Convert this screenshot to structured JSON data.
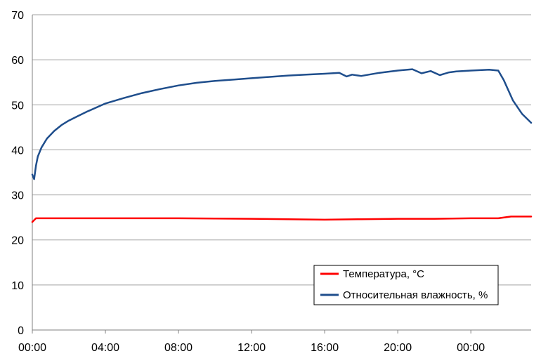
{
  "chart_data": {
    "type": "line",
    "title": "",
    "xlabel": "",
    "ylabel": "",
    "ylim": [
      0,
      70
    ],
    "yticks": [
      0,
      10,
      20,
      30,
      40,
      50,
      60,
      70
    ],
    "xticks": [
      "00:00",
      "04:00",
      "08:00",
      "12:00",
      "16:00",
      "20:00",
      "00:00"
    ],
    "xlim_hours": [
      0,
      27.3
    ],
    "grid": "horizontal",
    "legend_position": "bottom-right",
    "series": [
      {
        "name": "Температура, °C",
        "color": "#ff0000",
        "x_hours": [
          0,
          0.2,
          4,
          8,
          12,
          14,
          16,
          18,
          20,
          22,
          24,
          25.5,
          26.2,
          27.3
        ],
        "values": [
          24.0,
          24.8,
          24.8,
          24.8,
          24.7,
          24.6,
          24.5,
          24.6,
          24.7,
          24.7,
          24.8,
          24.8,
          25.2,
          25.2
        ]
      },
      {
        "name": "Относительная влажность, %",
        "color": "#1f4e8c",
        "x_hours": [
          0,
          0.1,
          0.2,
          0.3,
          0.5,
          0.8,
          1.2,
          1.6,
          2,
          2.5,
          3,
          4,
          5,
          6,
          7,
          8,
          9,
          10,
          11,
          12,
          13,
          14,
          15,
          16,
          16.8,
          17.2,
          17.5,
          18,
          19,
          20,
          20.8,
          21.3,
          21.8,
          22.3,
          22.8,
          23.2,
          24,
          25,
          25.5,
          25.8,
          26.3,
          26.8,
          27.3
        ],
        "values": [
          34.5,
          33.5,
          36.5,
          38.5,
          40.5,
          42.5,
          44.2,
          45.5,
          46.5,
          47.5,
          48.5,
          50.3,
          51.5,
          52.6,
          53.5,
          54.3,
          54.9,
          55.3,
          55.6,
          55.9,
          56.2,
          56.5,
          56.7,
          56.9,
          57.1,
          56.3,
          56.7,
          56.4,
          57.1,
          57.6,
          57.9,
          57.0,
          57.5,
          56.6,
          57.2,
          57.4,
          57.6,
          57.8,
          57.6,
          55.5,
          51.0,
          48.0,
          46.0
        ]
      }
    ]
  }
}
